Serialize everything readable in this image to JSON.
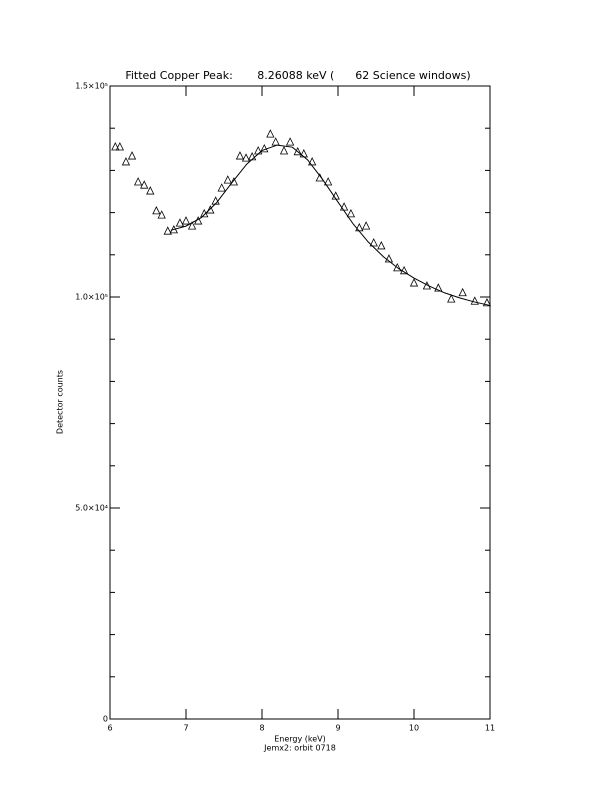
{
  "chart_data": {
    "type": "scatter",
    "title": "Fitted Copper Peak:       8.26088 keV (      62 Science windows)",
    "xlabel": "Energy (keV)",
    "subtitle": "Jemx2: orbit 0718",
    "ylabel": "Detector counts",
    "xlim": [
      6,
      11
    ],
    "xticks": [
      6,
      7,
      8,
      9,
      10,
      11
    ],
    "ylim": [
      0,
      150000
    ],
    "yticks": [
      0,
      {
        "value": 50000,
        "label": "5.0×10⁴"
      },
      {
        "value": 100000,
        "label": "1.0×10⁵"
      },
      {
        "value": 150000,
        "label": "1.5×10⁵"
      }
    ],
    "yminorticks": [
      10000,
      20000,
      30000,
      40000,
      60000,
      70000,
      80000,
      90000,
      110000,
      120000,
      130000,
      140000
    ],
    "mirror_axes": true,
    "series": [
      {
        "marker": "triangle",
        "color": "#000000",
        "x": [
          6.07,
          6.13,
          6.21,
          6.29,
          6.37,
          6.45,
          6.53,
          6.61,
          6.68,
          6.76,
          6.84,
          6.92,
          7.0,
          7.08,
          7.16,
          7.24,
          7.32,
          7.39,
          7.47,
          7.55,
          7.63,
          7.71,
          7.79,
          7.87,
          7.95,
          8.03,
          8.11,
          8.18,
          8.29,
          8.37,
          8.47,
          8.55,
          8.66,
          8.76,
          8.87,
          8.97,
          9.08,
          9.17,
          9.28,
          9.37,
          9.47,
          9.57,
          9.67,
          9.78,
          9.87,
          10.0,
          10.17,
          10.32,
          10.49,
          10.64,
          10.8,
          10.96
        ],
        "values": [
          135550,
          135550,
          132000,
          133400,
          127250,
          126500,
          125100,
          120400,
          119400,
          115600,
          115900,
          117500,
          118000,
          116800,
          118000,
          119700,
          120600,
          122700,
          125800,
          127700,
          127250,
          133400,
          132900,
          133200,
          134600,
          135100,
          138600,
          136700,
          134600,
          136700,
          134400,
          133900,
          132000,
          128200,
          127250,
          123900,
          121300,
          119700,
          116400,
          116800,
          112800,
          112100,
          109000,
          106900,
          106200,
          103300,
          102600,
          102100,
          99500,
          101000,
          99000,
          98600
        ]
      },
      {
        "marker": "line",
        "color": "#000000",
        "x": [
          6.8,
          7.0,
          7.2,
          7.4,
          7.6,
          7.8,
          8.0,
          8.2,
          8.4,
          8.6,
          8.8,
          9.0,
          9.2,
          9.4,
          9.6,
          9.8,
          10.0,
          10.2,
          10.4,
          10.6,
          10.8,
          11.0
        ],
        "values": [
          115800,
          116800,
          118800,
          122300,
          127000,
          131500,
          134700,
          136000,
          135500,
          132500,
          127800,
          122500,
          117300,
          113000,
          109500,
          106700,
          104500,
          102600,
          101000,
          99800,
          98800,
          98000
        ]
      }
    ]
  }
}
